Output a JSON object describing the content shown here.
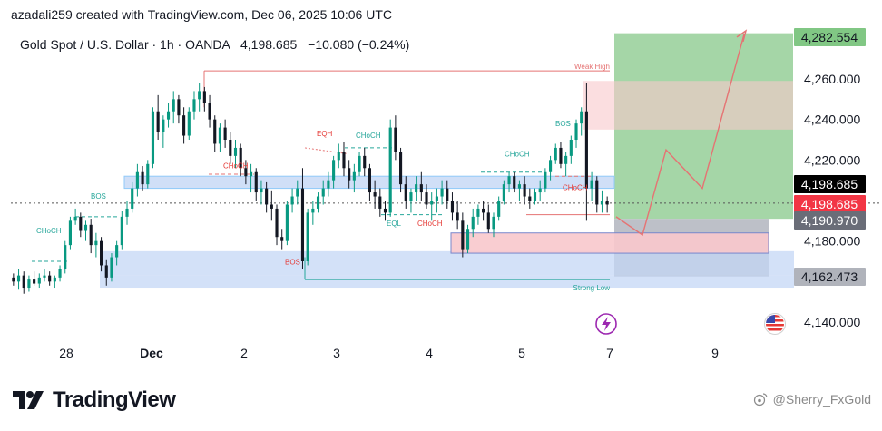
{
  "credit": "azadali259 created with TradingView.com, Dec 06, 2025 10:06 UTC",
  "legend": {
    "symbol": "Gold Spot / U.S. Dollar · 1h · OANDA",
    "price": "4,198.685",
    "change": "−10.080 (−0.24%)"
  },
  "brand": {
    "name": "TradingView"
  },
  "watermark": "@Sherry_FxGold",
  "colors": {
    "up": "#089981",
    "down": "#131722",
    "target_zone": "#a5d6a7",
    "stop_zone": "#b2b5be",
    "supply_zone": "#f8c8cc",
    "demand_zone": "#c4d7f5",
    "price_marker_dark": "#000000",
    "price_marker_red": "#f23645",
    "price_marker_gray": "#6a6d78",
    "target_marker": "#81c784",
    "weak_high_line": "#e57373",
    "strong_low_line": "#26a69a"
  },
  "chart_data": {
    "type": "candlestick",
    "timeframe": "1h",
    "x_ticks": [
      "28",
      "Dec",
      "2",
      "3",
      "4",
      "5",
      "7",
      "9"
    ],
    "y_ticks": [
      4140,
      4180,
      4220,
      4240,
      4260
    ],
    "y_tick_labels": [
      "4,140.000",
      "4,180.000",
      "4,220.000",
      "4,240.000",
      "4,260.000"
    ],
    "ylim": [
      4131,
      4296
    ],
    "price_markers": [
      {
        "label": "4,282.554",
        "value": 4282.554,
        "style": "target"
      },
      {
        "label": "4,198.685",
        "value": 4198.685,
        "style": "dark"
      },
      {
        "label": "4,198.685",
        "value": 4198.685,
        "style": "red"
      },
      {
        "label": "4,190.970",
        "value": 4190.97,
        "style": "gray"
      },
      {
        "label": "4,162.473",
        "value": 4162.473,
        "style": "gray"
      }
    ],
    "annotations": [
      {
        "text": "Weak High",
        "value": 4264,
        "color": "#e57373"
      },
      {
        "text": "Strong Low",
        "value": 4161,
        "color": "#26a69a"
      },
      {
        "text": "BOS",
        "value": 4200,
        "color": "#26a69a"
      },
      {
        "text": "CHoCH",
        "value": 4182,
        "color": "#26a69a"
      },
      {
        "text": "CHoCH",
        "value": 4215,
        "color": "#e53935"
      },
      {
        "text": "BOS",
        "value": 4172,
        "color": "#e53935"
      },
      {
        "text": "EQH",
        "value": 4230,
        "color": "#e53935"
      },
      {
        "text": "CHoCH",
        "value": 4230,
        "color": "#26a69a"
      },
      {
        "text": "EQL",
        "value": 4191,
        "color": "#26a69a"
      },
      {
        "text": "CHoCH",
        "value": 4191,
        "color": "#e53935"
      },
      {
        "text": "CHoCH",
        "value": 4220,
        "color": "#26a69a"
      },
      {
        "text": "BOS",
        "value": 4235,
        "color": "#26a69a"
      },
      {
        "text": "CHoCH",
        "value": 4207,
        "color": "#e53935"
      }
    ],
    "zones": [
      {
        "kind": "target",
        "from": 4190.97,
        "to": 4282.554
      },
      {
        "kind": "stop",
        "from": 4162.473,
        "to": 4190.97
      },
      {
        "kind": "supply",
        "from": 4235,
        "to": 4259
      },
      {
        "kind": "demand",
        "from": 4163,
        "to": 4175
      },
      {
        "kind": "demand",
        "from": 4157,
        "to": 4163
      },
      {
        "kind": "sell",
        "from": 4174,
        "to": 4184
      },
      {
        "kind": "band",
        "from": 4206,
        "to": 4212
      }
    ],
    "projection": [
      4192,
      4183,
      4225,
      4206,
      4282
    ],
    "candles": [
      [
        4162,
        4164,
        4158,
        4160
      ],
      [
        4160,
        4166,
        4156,
        4163
      ],
      [
        4163,
        4165,
        4154,
        4157
      ],
      [
        4157,
        4163,
        4155,
        4161
      ],
      [
        4161,
        4165,
        4158,
        4159
      ],
      [
        4159,
        4164,
        4157,
        4162
      ],
      [
        4162,
        4166,
        4160,
        4163
      ],
      [
        4163,
        4165,
        4158,
        4160
      ],
      [
        4160,
        4163,
        4157,
        4162
      ],
      [
        4162,
        4168,
        4160,
        4166
      ],
      [
        4166,
        4180,
        4164,
        4178
      ],
      [
        4178,
        4192,
        4176,
        4190
      ],
      [
        4190,
        4196,
        4188,
        4192
      ],
      [
        4192,
        4194,
        4182,
        4185
      ],
      [
        4185,
        4190,
        4180,
        4188
      ],
      [
        4188,
        4191,
        4174,
        4178
      ],
      [
        4178,
        4184,
        4172,
        4180
      ],
      [
        4180,
        4182,
        4165,
        4168
      ],
      [
        4168,
        4171,
        4158,
        4162
      ],
      [
        4162,
        4174,
        4160,
        4172
      ],
      [
        4172,
        4180,
        4168,
        4178
      ],
      [
        4178,
        4195,
        4176,
        4192
      ],
      [
        4192,
        4200,
        4188,
        4196
      ],
      [
        4196,
        4209,
        4194,
        4206
      ],
      [
        4206,
        4218,
        4202,
        4214
      ],
      [
        4214,
        4217,
        4205,
        4208
      ],
      [
        4208,
        4220,
        4206,
        4218
      ],
      [
        4218,
        4246,
        4216,
        4244
      ],
      [
        4244,
        4252,
        4230,
        4234
      ],
      [
        4234,
        4242,
        4226,
        4240
      ],
      [
        4240,
        4248,
        4236,
        4244
      ],
      [
        4244,
        4254,
        4238,
        4250
      ],
      [
        4250,
        4252,
        4238,
        4242
      ],
      [
        4242,
        4246,
        4228,
        4232
      ],
      [
        4232,
        4246,
        4230,
        4244
      ],
      [
        4244,
        4254,
        4240,
        4250
      ],
      [
        4250,
        4258,
        4244,
        4254
      ],
      [
        4254,
        4256,
        4244,
        4248
      ],
      [
        4248,
        4252,
        4236,
        4240
      ],
      [
        4240,
        4242,
        4224,
        4228
      ],
      [
        4228,
        4238,
        4224,
        4236
      ],
      [
        4236,
        4240,
        4226,
        4230
      ],
      [
        4230,
        4234,
        4218,
        4222
      ],
      [
        4222,
        4230,
        4216,
        4226
      ],
      [
        4226,
        4228,
        4212,
        4216
      ],
      [
        4216,
        4220,
        4208,
        4212
      ],
      [
        4212,
        4218,
        4204,
        4214
      ],
      [
        4214,
        4216,
        4200,
        4204
      ],
      [
        4204,
        4210,
        4198,
        4206
      ],
      [
        4206,
        4209,
        4194,
        4198
      ],
      [
        4198,
        4205,
        4190,
        4196
      ],
      [
        4196,
        4198,
        4178,
        4182
      ],
      [
        4182,
        4186,
        4176,
        4180
      ],
      [
        4180,
        4200,
        4178,
        4198
      ],
      [
        4198,
        4206,
        4194,
        4202
      ],
      [
        4202,
        4210,
        4198,
        4206
      ],
      [
        4206,
        4216,
        4166,
        4170
      ],
      [
        4170,
        4196,
        4168,
        4194
      ],
      [
        4194,
        4200,
        4188,
        4196
      ],
      [
        4196,
        4204,
        4194,
        4202
      ],
      [
        4202,
        4210,
        4198,
        4206
      ],
      [
        4206,
        4214,
        4202,
        4210
      ],
      [
        4210,
        4222,
        4206,
        4220
      ],
      [
        4220,
        4228,
        4216,
        4224
      ],
      [
        4224,
        4229,
        4212,
        4216
      ],
      [
        4216,
        4220,
        4206,
        4210
      ],
      [
        4210,
        4218,
        4204,
        4214
      ],
      [
        4214,
        4224,
        4212,
        4222
      ],
      [
        4222,
        4226,
        4212,
        4216
      ],
      [
        4216,
        4218,
        4200,
        4204
      ],
      [
        4204,
        4210,
        4196,
        4202
      ],
      [
        4202,
        4206,
        4192,
        4196
      ],
      [
        4196,
        4200,
        4190,
        4194
      ],
      [
        4194,
        4240,
        4192,
        4236
      ],
      [
        4236,
        4242,
        4220,
        4224
      ],
      [
        4224,
        4226,
        4204,
        4208
      ],
      [
        4208,
        4212,
        4196,
        4200
      ],
      [
        4200,
        4206,
        4194,
        4204
      ],
      [
        4204,
        4212,
        4200,
        4208
      ],
      [
        4208,
        4214,
        4200,
        4204
      ],
      [
        4204,
        4208,
        4196,
        4198
      ],
      [
        4198,
        4204,
        4190,
        4200
      ],
      [
        4200,
        4206,
        4194,
        4202
      ],
      [
        4202,
        4210,
        4198,
        4206
      ],
      [
        4206,
        4210,
        4196,
        4200
      ],
      [
        4200,
        4204,
        4190,
        4194
      ],
      [
        4194,
        4200,
        4186,
        4190
      ],
      [
        4190,
        4194,
        4172,
        4176
      ],
      [
        4176,
        4188,
        4174,
        4186
      ],
      [
        4186,
        4196,
        4182,
        4192
      ],
      [
        4192,
        4198,
        4188,
        4196
      ],
      [
        4196,
        4200,
        4190,
        4194
      ],
      [
        4194,
        4198,
        4184,
        4186
      ],
      [
        4186,
        4194,
        4182,
        4192
      ],
      [
        4192,
        4202,
        4190,
        4200
      ],
      [
        4200,
        4210,
        4198,
        4208
      ],
      [
        4208,
        4214,
        4204,
        4212
      ],
      [
        4212,
        4214,
        4204,
        4206
      ],
      [
        4206,
        4210,
        4200,
        4208
      ],
      [
        4208,
        4212,
        4198,
        4202
      ],
      [
        4202,
        4206,
        4196,
        4200
      ],
      [
        4200,
        4206,
        4198,
        4204
      ],
      [
        4204,
        4210,
        4200,
        4206
      ],
      [
        4206,
        4216,
        4204,
        4214
      ],
      [
        4214,
        4222,
        4210,
        4220
      ],
      [
        4220,
        4228,
        4218,
        4226
      ],
      [
        4226,
        4229,
        4216,
        4218
      ],
      [
        4218,
        4224,
        4212,
        4222
      ],
      [
        4222,
        4232,
        4218,
        4230
      ],
      [
        4230,
        4240,
        4226,
        4238
      ],
      [
        4238,
        4246,
        4232,
        4244
      ],
      [
        4244,
        4258,
        4190,
        4206
      ],
      [
        4206,
        4214,
        4200,
        4210
      ],
      [
        4210,
        4212,
        4194,
        4198
      ],
      [
        4198,
        4205,
        4194,
        4200
      ],
      [
        4200,
        4202,
        4194,
        4198
      ]
    ]
  }
}
